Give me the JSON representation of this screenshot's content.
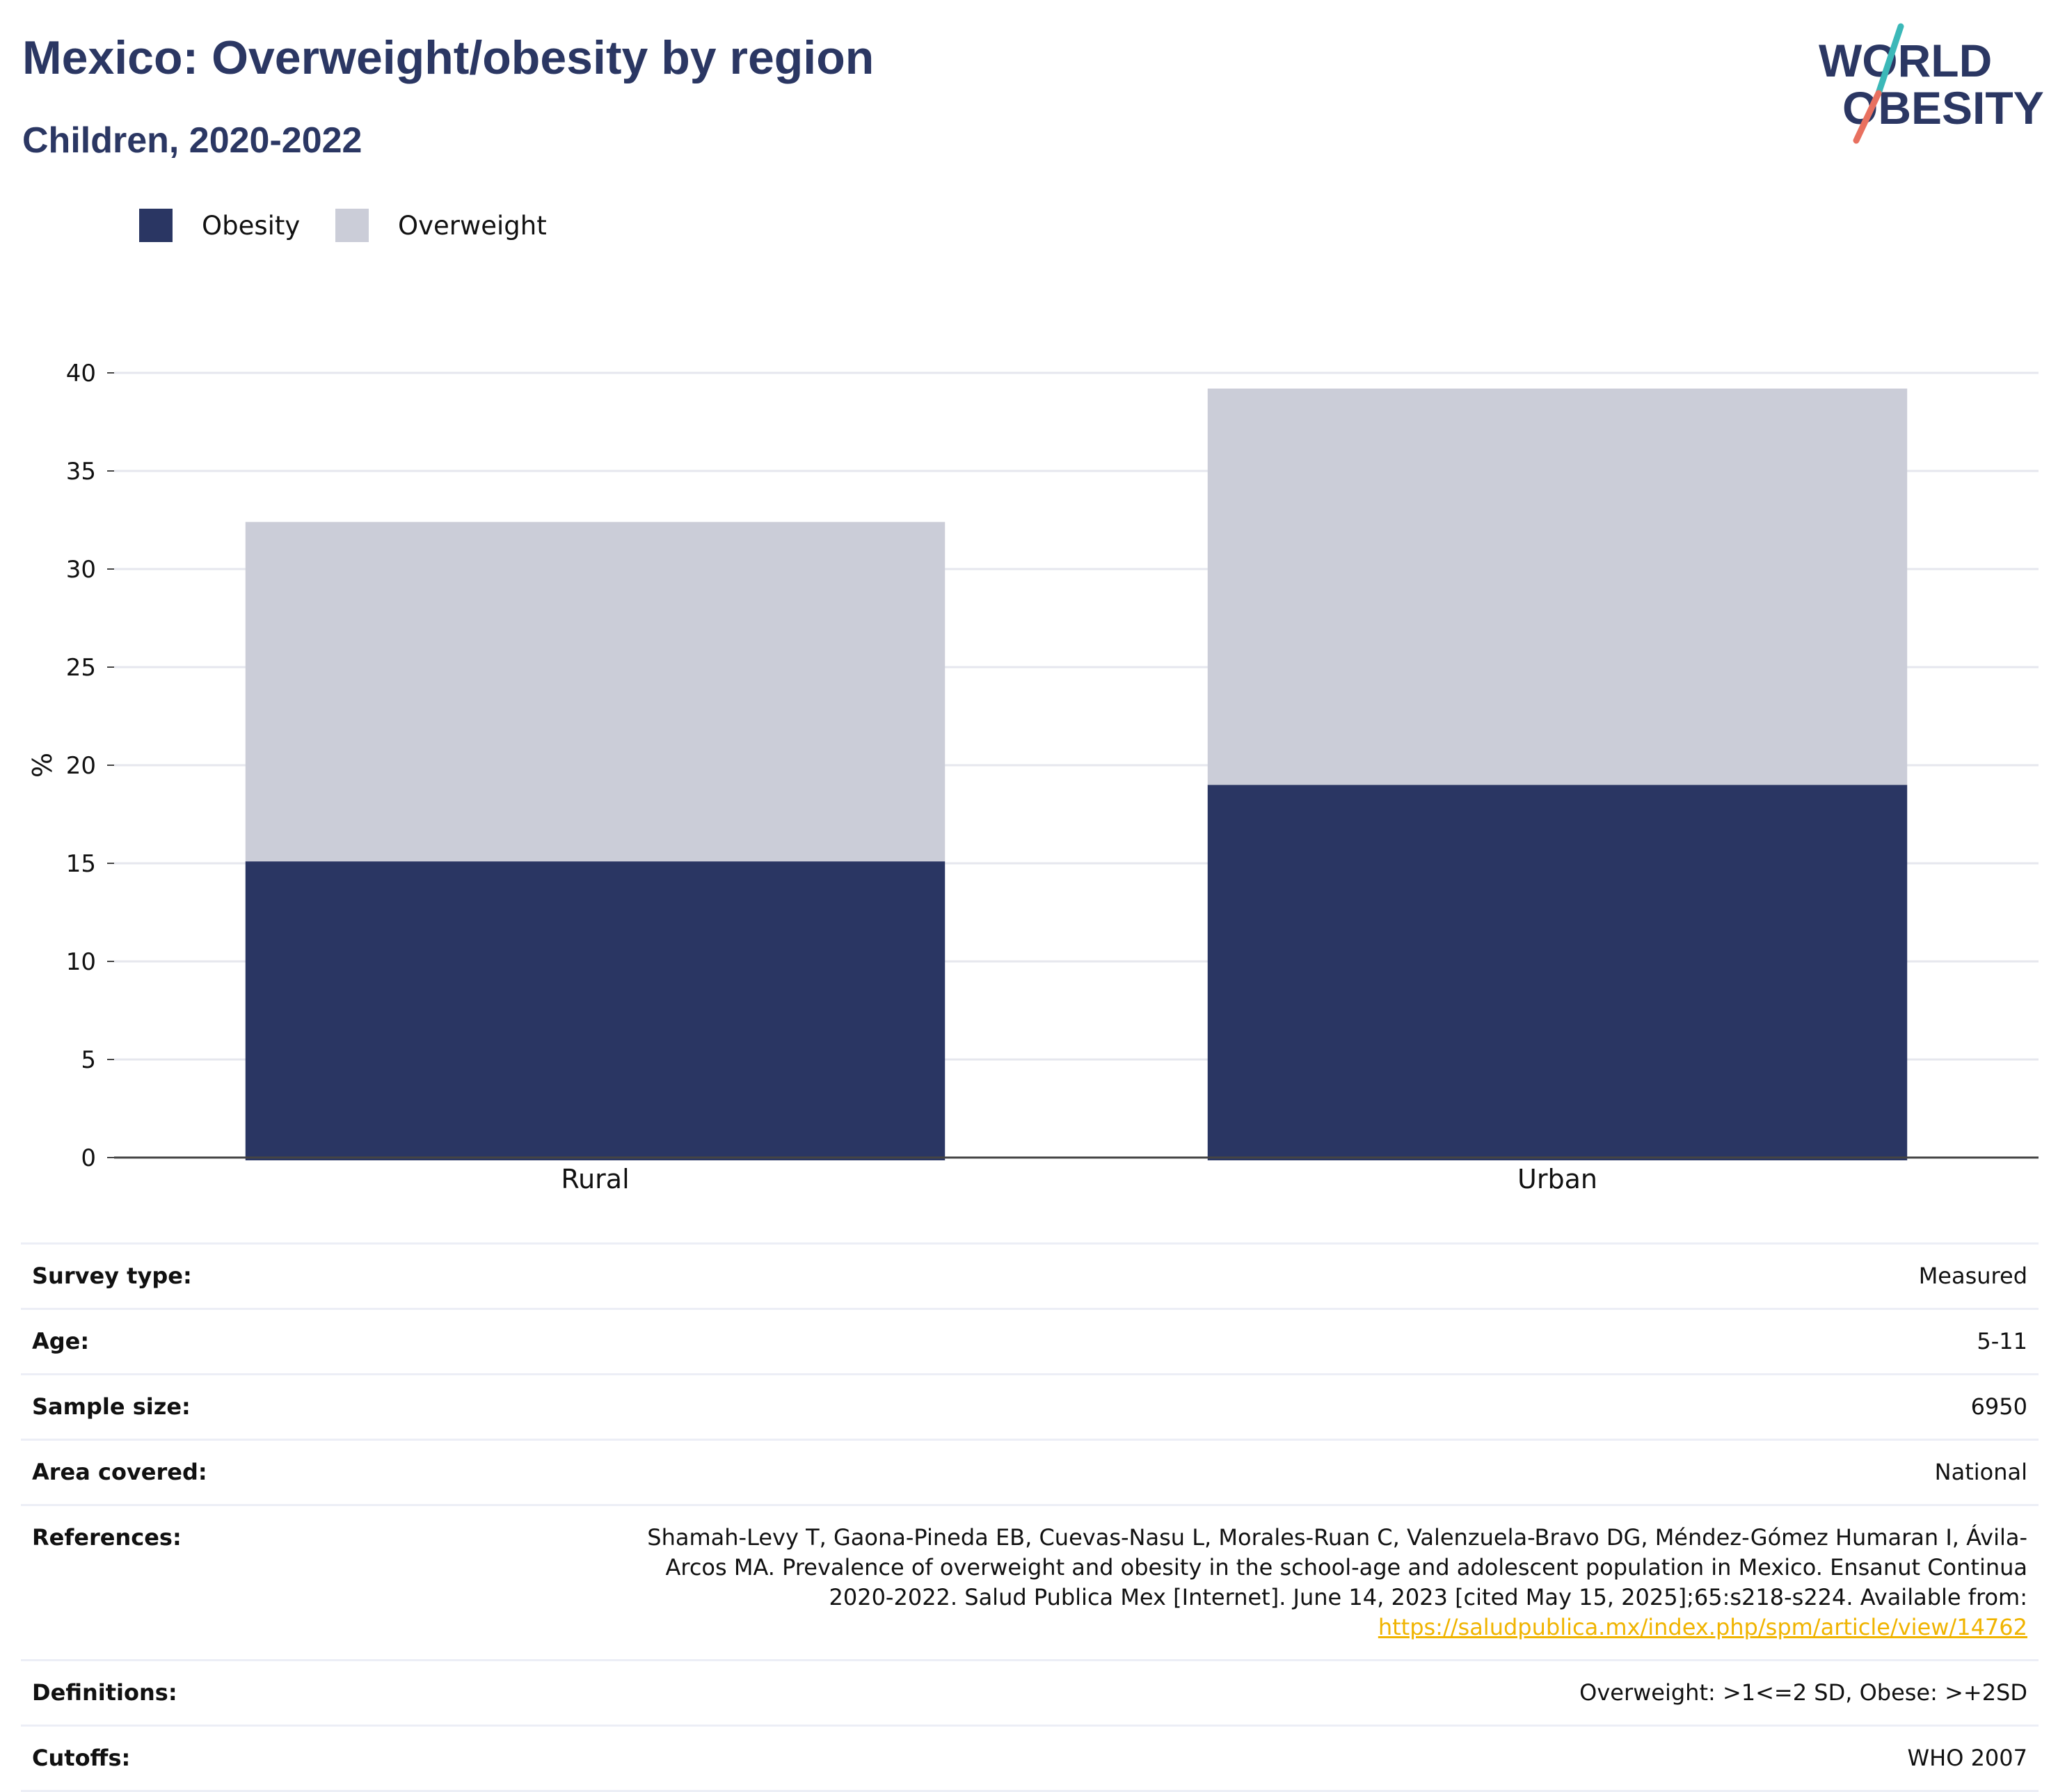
{
  "header": {
    "title": "Mexico: Overweight/obesity by region",
    "subtitle": "Children, 2020-2022"
  },
  "logo": {
    "line1": "WORLD",
    "line2": "OBESITY",
    "colors": {
      "text": "#2b3763",
      "slash_teal": "#3bb8b8",
      "slash_coral": "#e8705f"
    }
  },
  "legend": [
    {
      "label": "Obesity",
      "color": "#2a3663"
    },
    {
      "label": "Overweight",
      "color": "#cbcdd8"
    }
  ],
  "chart_data": {
    "type": "bar",
    "stacked": true,
    "categories": [
      "Rural",
      "Urban"
    ],
    "series": [
      {
        "name": "Obesity",
        "values": [
          15.1,
          19.0
        ],
        "color": "#2a3663"
      },
      {
        "name": "Overweight",
        "values": [
          17.3,
          20.2
        ],
        "color": "#cbcdd8"
      }
    ],
    "ylabel": "%",
    "xlabel": "",
    "ylim": [
      0,
      40
    ],
    "yticks": [
      0,
      5,
      10,
      15,
      20,
      25,
      30,
      35,
      40
    ],
    "grid": true,
    "legend_position": "top-left"
  },
  "metadata": [
    {
      "label": "Survey type:",
      "value": "Measured"
    },
    {
      "label": "Age:",
      "value": "5-11"
    },
    {
      "label": "Sample size:",
      "value": "6950"
    },
    {
      "label": "Area covered:",
      "value": "National"
    },
    {
      "label": "References:",
      "value": "Shamah-Levy T, Gaona-Pineda EB, Cuevas-Nasu L, Morales-Ruan C, Valenzuela-Bravo DG, Méndez-Gómez Humaran I, Ávila-Arcos MA. Prevalence of overweight and obesity in the school-age and adolescent population in Mexico. Ensanut Continua 2020-2022. Salud Publica Mex [Internet]. June 14, 2023 [cited May 15, 2025];65:s218-s224. Available from:",
      "link": "https://saludpublica.mx/index.php/spm/article/view/14762"
    },
    {
      "label": "Definitions:",
      "value": "Overweight: >1<=2 SD, Obese: >+2SD"
    },
    {
      "label": "Cutoffs:",
      "value": "WHO 2007"
    }
  ]
}
